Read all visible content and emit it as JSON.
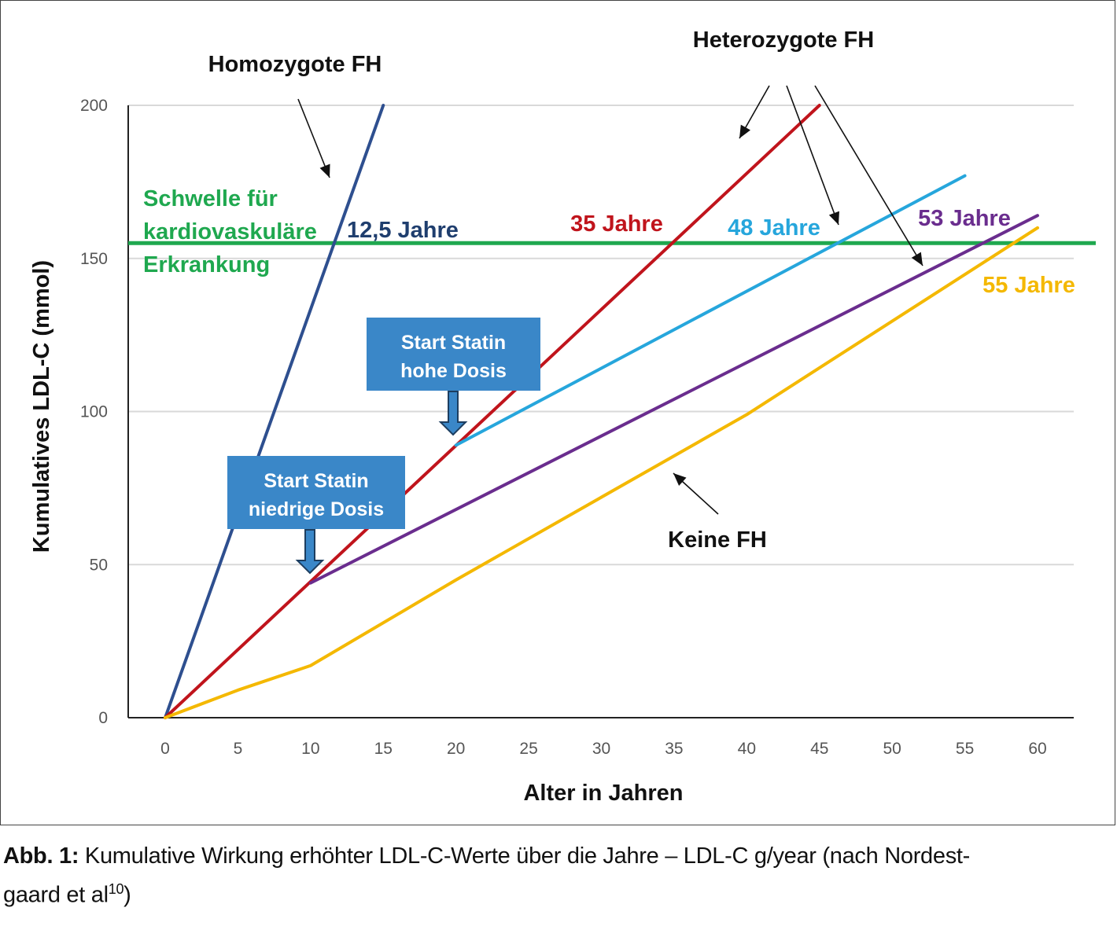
{
  "chart_data": {
    "type": "line",
    "xlabel": "Alter in Jahren",
    "ylabel": "Kumulatives LDL-C (mmol)",
    "xlim": [
      0,
      60
    ],
    "ylim": [
      0,
      200
    ],
    "x_ticks": [
      "0",
      "5",
      "10",
      "15",
      "20",
      "25",
      "30",
      "35",
      "40",
      "45",
      "50",
      "55",
      "60"
    ],
    "y_ticks": [
      "0",
      "50",
      "100",
      "150",
      "200"
    ],
    "grid": "horizontal",
    "threshold": {
      "value": 155,
      "color": "#1fa84f",
      "label_lines": [
        "Schwelle für",
        "kardiovaskuläre",
        "Erkrankung"
      ]
    },
    "series": [
      {
        "key": "homozygous",
        "color": "#2e4f8f",
        "points": [
          [
            0,
            0
          ],
          [
            15,
            200
          ]
        ]
      },
      {
        "key": "hetero_untreated",
        "color": "#c0141c",
        "points": [
          [
            0,
            0
          ],
          [
            45,
            200
          ]
        ]
      },
      {
        "key": "hetero_high_dose",
        "color": "#26a6dc",
        "points": [
          [
            20,
            89
          ],
          [
            55,
            177
          ]
        ]
      },
      {
        "key": "hetero_low_dose",
        "color": "#6a2d8e",
        "points": [
          [
            10,
            44
          ],
          [
            60,
            164
          ]
        ]
      },
      {
        "key": "no_fh",
        "color": "#f4b800",
        "points": [
          [
            0,
            0
          ],
          [
            5,
            9
          ],
          [
            10,
            17
          ],
          [
            20,
            45
          ],
          [
            40,
            99
          ],
          [
            60,
            160
          ]
        ]
      }
    ],
    "annotations": {
      "homozygote": "Homozygote FH",
      "heterozygote": "Heterozygote FH",
      "keine": "Keine FH",
      "homo_age": "12,5 Jahre",
      "age35": "35 Jahre",
      "age48": "48 Jahre",
      "age53": "53 Jahre",
      "age55": "55 Jahre",
      "statin_high": [
        "Start Statin",
        "hohe Dosis"
      ],
      "statin_low": [
        "Start Statin",
        "niedrige Dosis"
      ]
    },
    "colors": {
      "homo_text": "#1f3e6e",
      "age35_text": "#c0141c",
      "age48_text": "#26a6dc",
      "age53_text": "#6a2d8e",
      "age55_text": "#f4b800",
      "box_fill": "#3a87c8",
      "grid": "#d9d9d9"
    }
  },
  "caption": {
    "label": "Abb. 1:",
    "text": " Kumulative Wirkung erhöhter LDL-C-Werte über die Jahre – LDL-C g/year (nach Nordest-",
    "text2": "gaard et al",
    "ref": "10",
    "text3": ")"
  }
}
